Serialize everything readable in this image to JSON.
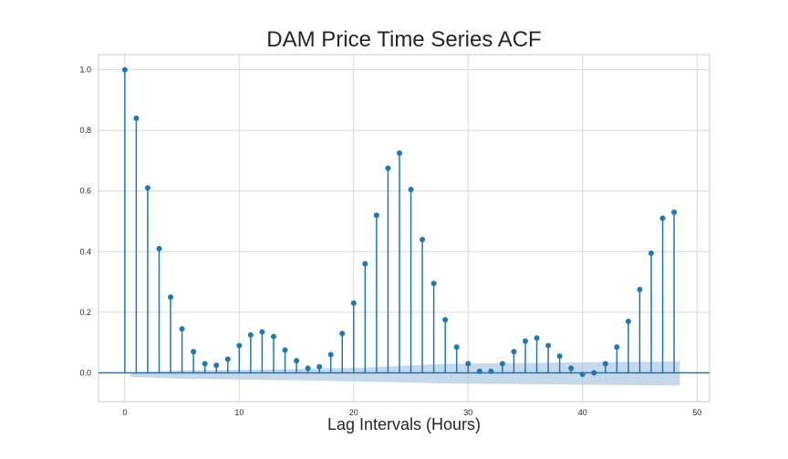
{
  "chart_data": {
    "type": "stem",
    "title": "DAM Price Time Series ACF",
    "xlabel": "Lag Intervals (Hours)",
    "ylabel": "",
    "xlim": [
      -2.3,
      51.1
    ],
    "ylim": [
      -0.095,
      1.05
    ],
    "xticks": [
      0,
      10,
      20,
      30,
      40,
      50
    ],
    "yticks": [
      0.0,
      0.2,
      0.4,
      0.6,
      0.8,
      1.0
    ],
    "xtick_labels": [
      "0",
      "10",
      "20",
      "30",
      "40",
      "50"
    ],
    "ytick_labels": [
      "0.0",
      "0.2",
      "0.4",
      "0.6",
      "0.8",
      "1.0"
    ],
    "grid": true,
    "colors": {
      "stem": "#1f77b4",
      "marker": "#1f77b4",
      "confidence_band": "#a8c4e0",
      "grid": "#d9d9d9",
      "zero_line": "#1f77b4"
    },
    "lags": [
      0,
      1,
      2,
      3,
      4,
      5,
      6,
      7,
      8,
      9,
      10,
      11,
      12,
      13,
      14,
      15,
      16,
      17,
      18,
      19,
      20,
      21,
      22,
      23,
      24,
      25,
      26,
      27,
      28,
      29,
      30,
      31,
      32,
      33,
      34,
      35,
      36,
      37,
      38,
      39,
      40,
      41,
      42,
      43,
      44,
      45,
      46,
      47,
      48
    ],
    "acf": [
      1.0,
      0.84,
      0.61,
      0.41,
      0.25,
      0.145,
      0.07,
      0.03,
      0.025,
      0.045,
      0.09,
      0.125,
      0.135,
      0.12,
      0.075,
      0.04,
      0.015,
      0.02,
      0.06,
      0.13,
      0.23,
      0.36,
      0.52,
      0.675,
      0.725,
      0.605,
      0.44,
      0.295,
      0.175,
      0.085,
      0.03,
      0.005,
      0.005,
      0.03,
      0.07,
      0.105,
      0.115,
      0.09,
      0.055,
      0.015,
      -0.005,
      0.0,
      0.03,
      0.085,
      0.17,
      0.275,
      0.395,
      0.51,
      0.53
    ],
    "confidence_band": {
      "x": [
        0.5,
        5,
        10,
        20,
        28,
        48.5
      ],
      "upper": [
        0.0,
        0.008,
        0.01,
        0.016,
        0.03,
        0.038
      ],
      "lower": [
        -0.013,
        -0.02,
        -0.022,
        -0.028,
        -0.035,
        -0.042
      ]
    }
  }
}
